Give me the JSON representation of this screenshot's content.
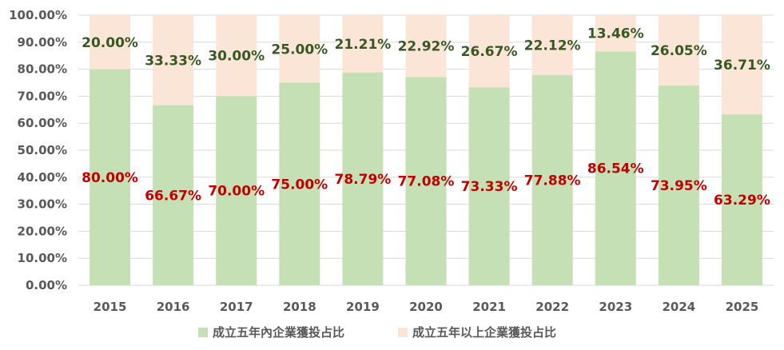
{
  "chart_data": {
    "type": "bar",
    "stacked": true,
    "percent_stacked": true,
    "categories": [
      "2015",
      "2016",
      "2017",
      "2018",
      "2019",
      "2020",
      "2021",
      "2022",
      "2023",
      "2024",
      "2025"
    ],
    "series": [
      {
        "name": "成立五年內企業獲投占比",
        "color": "#c5e0b4",
        "label_color": "#c00000",
        "values": [
          80.0,
          66.67,
          70.0,
          75.0,
          78.79,
          77.08,
          73.33,
          77.88,
          86.54,
          73.95,
          63.29
        ],
        "labels": [
          "80.00%",
          "66.67%",
          "70.00%",
          "75.00%",
          "78.79%",
          "77.08%",
          "73.33%",
          "77.88%",
          "86.54%",
          "73.95%",
          "63.29%"
        ]
      },
      {
        "name": "成立五年以上企業獲投占比",
        "color": "#fbe5d6",
        "label_color": "#385723",
        "values": [
          20.0,
          33.33,
          30.0,
          25.0,
          21.21,
          22.92,
          26.67,
          22.12,
          13.46,
          26.05,
          36.71
        ],
        "labels": [
          "20.00%",
          "33.33%",
          "30.00%",
          "25.00%",
          "21.21%",
          "22.92%",
          "26.67%",
          "22.12%",
          "13.46%",
          "26.05%",
          "36.71%"
        ]
      }
    ],
    "ylim": [
      0,
      100
    ],
    "yticks": [
      "0.00%",
      "10.00%",
      "20.00%",
      "30.00%",
      "40.00%",
      "50.00%",
      "60.00%",
      "70.00%",
      "80.00%",
      "90.00%",
      "100.00%"
    ],
    "grid": true,
    "legend_position": "bottom",
    "title": "",
    "xlabel": "",
    "ylabel": ""
  }
}
